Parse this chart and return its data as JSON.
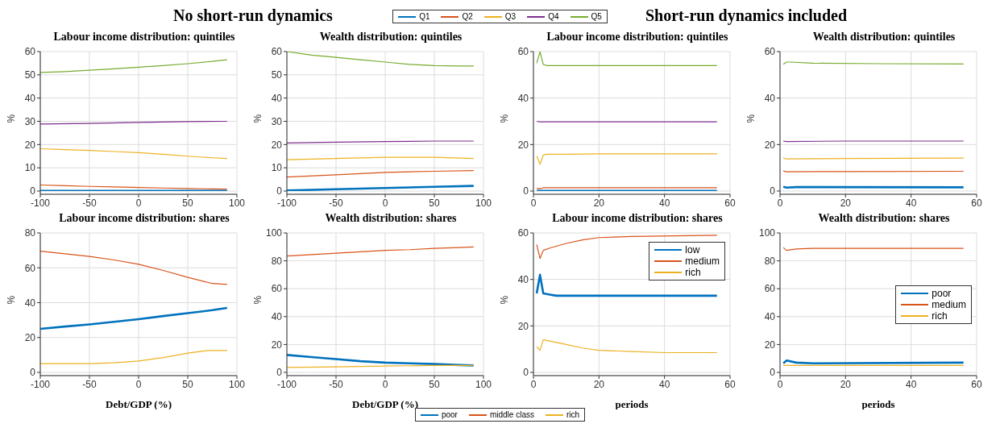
{
  "chart_data": [
    {
      "type": "line",
      "subtitle": "No short-run dynamics",
      "title": "Labour income distribution: quintiles",
      "ylabel": "%",
      "xlim": [
        -100,
        100
      ],
      "xticks": [
        -100,
        -50,
        0,
        50,
        100
      ],
      "ylim": [
        0,
        60
      ],
      "yticks": [
        0,
        10,
        20,
        30,
        40,
        50,
        60
      ],
      "grid": true,
      "legend": "top",
      "series": [
        {
          "name": "Q1",
          "color": "#0072bd",
          "x": [
            -100,
            -50,
            0,
            50,
            90
          ],
          "values": [
            0.1,
            0.1,
            0.1,
            0.1,
            0.1
          ]
        },
        {
          "name": "Q2",
          "color": "#d95319",
          "x": [
            -100,
            -75,
            -50,
            -25,
            0,
            25,
            50,
            75,
            90
          ],
          "values": [
            2.6,
            2.3,
            2,
            1.8,
            1.5,
            1.3,
            1.1,
            0.9,
            0.8
          ]
        },
        {
          "name": "Q3",
          "color": "#edb120",
          "x": [
            -100,
            -75,
            -50,
            -25,
            0,
            25,
            50,
            75,
            90
          ],
          "values": [
            18.2,
            17.8,
            17.5,
            17,
            16.5,
            15.8,
            15,
            14.3,
            14
          ]
        },
        {
          "name": "Q4",
          "color": "#7e2f8e",
          "x": [
            -100,
            -50,
            0,
            50,
            90
          ],
          "values": [
            28.8,
            29.1,
            29.5,
            29.9,
            30
          ]
        },
        {
          "name": "Q5",
          "color": "#77ac30",
          "x": [
            -100,
            -75,
            -50,
            -25,
            0,
            25,
            50,
            75,
            90
          ],
          "values": [
            51,
            51.4,
            52,
            52.6,
            53.3,
            54,
            54.8,
            55.8,
            56.5
          ]
        }
      ]
    },
    {
      "type": "line",
      "title": "Wealth distribution: quintiles",
      "ylabel": "%",
      "xlim": [
        -100,
        100
      ],
      "xticks": [
        -100,
        -50,
        0,
        50,
        100
      ],
      "ylim": [
        0,
        60
      ],
      "yticks": [
        0,
        10,
        20,
        30,
        40,
        50,
        60
      ],
      "grid": true,
      "series": [
        {
          "color": "#0072bd",
          "x": [
            -100,
            -50,
            0,
            50,
            90
          ],
          "values": [
            0.2,
            0.8,
            1.3,
            1.8,
            2.2
          ]
        },
        {
          "color": "#d95319",
          "x": [
            -100,
            -50,
            0,
            50,
            90
          ],
          "values": [
            6,
            7,
            8,
            8.5,
            8.8
          ]
        },
        {
          "color": "#edb120",
          "x": [
            -100,
            -50,
            0,
            50,
            90
          ],
          "values": [
            13.5,
            14,
            14.5,
            14.5,
            14
          ]
        },
        {
          "color": "#7e2f8e",
          "x": [
            -100,
            -50,
            0,
            50,
            90
          ],
          "values": [
            20.7,
            21,
            21.3,
            21.5,
            21.5
          ]
        },
        {
          "color": "#77ac30",
          "x": [
            -100,
            -75,
            -50,
            -25,
            0,
            25,
            50,
            75,
            90
          ],
          "values": [
            60,
            58.5,
            57.5,
            56.5,
            55.5,
            54.5,
            54,
            53.8,
            53.8
          ]
        }
      ]
    },
    {
      "type": "line",
      "subtitle": "Short-run dynamics included",
      "title": "Labour income distribution: quintiles",
      "ylabel": "%",
      "xlim": [
        0,
        60
      ],
      "xticks": [
        0,
        20,
        40,
        60
      ],
      "ylim": [
        0,
        60
      ],
      "yticks": [
        0,
        20,
        40,
        60
      ],
      "grid": true,
      "series": [
        {
          "color": "#0072bd",
          "x": [
            1,
            10,
            30,
            56
          ],
          "values": [
            0.1,
            0.1,
            0.1,
            0.1
          ]
        },
        {
          "color": "#d95319",
          "x": [
            1,
            2,
            3,
            10,
            56
          ],
          "values": [
            1.2,
            1,
            1.4,
            1.4,
            1.4
          ]
        },
        {
          "color": "#edb120",
          "x": [
            1,
            2,
            3,
            4,
            10,
            20,
            30,
            40,
            56
          ],
          "values": [
            15,
            11.5,
            15.5,
            15.8,
            15.8,
            16,
            16,
            16,
            16
          ]
        },
        {
          "color": "#7e2f8e",
          "x": [
            1,
            2,
            10,
            30,
            56
          ],
          "values": [
            30,
            29.8,
            29.8,
            29.8,
            29.8
          ]
        },
        {
          "color": "#77ac30",
          "x": [
            1,
            2,
            3,
            4,
            10,
            20,
            30,
            40,
            56
          ],
          "values": [
            55,
            60,
            54.5,
            54,
            54,
            54,
            54,
            54,
            54
          ]
        }
      ]
    },
    {
      "type": "line",
      "title": "Wealth distribution: quintiles",
      "ylabel": "%",
      "xlim": [
        0,
        60
      ],
      "xticks": [
        0,
        20,
        40,
        60
      ],
      "ylim": [
        0,
        60
      ],
      "yticks": [
        0,
        20,
        40,
        60
      ],
      "grid": true,
      "series": [
        {
          "color": "#0072bd",
          "x": [
            1,
            2,
            5,
            56
          ],
          "values": [
            1.8,
            1.5,
            1.7,
            1.6
          ]
        },
        {
          "color": "#d95319",
          "x": [
            1,
            2,
            20,
            56
          ],
          "values": [
            8.6,
            8.3,
            8.4,
            8.5
          ]
        },
        {
          "color": "#edb120",
          "x": [
            1,
            2,
            20,
            56
          ],
          "values": [
            14.2,
            13.8,
            14,
            14.2
          ]
        },
        {
          "color": "#7e2f8e",
          "x": [
            1,
            2,
            20,
            56
          ],
          "values": [
            21.5,
            21.3,
            21.5,
            21.5
          ]
        },
        {
          "color": "#77ac30",
          "x": [
            1,
            2,
            3,
            10,
            30,
            56
          ],
          "values": [
            54.5,
            55.5,
            55.5,
            55,
            54.8,
            54.7
          ]
        }
      ]
    },
    {
      "type": "line",
      "title": "Labour income distribution: shares",
      "xlabel": "Debt/GDP (%)",
      "ylabel": "%",
      "xlim": [
        -100,
        100
      ],
      "xticks": [
        -100,
        -50,
        0,
        50,
        100
      ],
      "ylim": [
        0,
        80
      ],
      "yticks": [
        0,
        20,
        40,
        60,
        80
      ],
      "grid": true,
      "legend": "bottom",
      "series": [
        {
          "name": "poor",
          "color": "#0072bd",
          "x": [
            -100,
            -75,
            -50,
            -25,
            0,
            25,
            50,
            75,
            90
          ],
          "values": [
            25,
            26.3,
            27.5,
            29,
            30.5,
            32.3,
            34,
            35.7,
            37
          ]
        },
        {
          "name": "middle class",
          "color": "#d95319",
          "x": [
            -100,
            -75,
            -50,
            -25,
            0,
            25,
            50,
            75,
            90
          ],
          "values": [
            69.5,
            68,
            66.5,
            64.5,
            62,
            58.5,
            54.5,
            51,
            50.5
          ]
        },
        {
          "name": "rich",
          "color": "#edb120",
          "x": [
            -100,
            -75,
            -50,
            -25,
            0,
            25,
            50,
            70,
            90
          ],
          "values": [
            5,
            5,
            5,
            5.5,
            6.5,
            8.5,
            11,
            12.5,
            12.5
          ]
        }
      ]
    },
    {
      "type": "line",
      "title": "Wealth distribution: shares",
      "xlabel": "Debt/GDP (%)",
      "ylabel": "%",
      "xlim": [
        -100,
        100
      ],
      "xticks": [
        -100,
        -50,
        0,
        50,
        100
      ],
      "ylim": [
        0,
        100
      ],
      "yticks": [
        0,
        20,
        40,
        60,
        80,
        100
      ],
      "grid": true,
      "series": [
        {
          "color": "#0072bd",
          "x": [
            -100,
            -75,
            -50,
            -25,
            0,
            25,
            50,
            75,
            90
          ],
          "values": [
            12.5,
            11,
            9.5,
            8,
            7,
            6.5,
            6,
            5.3,
            5
          ]
        },
        {
          "color": "#d95319",
          "x": [
            -100,
            -75,
            -50,
            -25,
            0,
            25,
            50,
            75,
            90
          ],
          "values": [
            83.5,
            84.5,
            85.5,
            86.5,
            87.5,
            88,
            89,
            89.5,
            90
          ]
        },
        {
          "color": "#edb120",
          "x": [
            -100,
            -50,
            0,
            50,
            90
          ],
          "values": [
            3.5,
            4,
            4.5,
            5,
            5
          ]
        }
      ]
    },
    {
      "type": "line",
      "title": "Labour income distribution: shares",
      "xlabel": "periods",
      "ylabel": "%",
      "xlim": [
        0,
        60
      ],
      "xticks": [
        0,
        20,
        40,
        60
      ],
      "ylim": [
        0,
        60
      ],
      "yticks": [
        0,
        20,
        40,
        60
      ],
      "grid": true,
      "legend": "top right",
      "series": [
        {
          "name": "low",
          "color": "#0072bd",
          "x": [
            1,
            2,
            3,
            5,
            7,
            10,
            20,
            56
          ],
          "values": [
            34,
            42,
            34,
            33.5,
            33,
            33,
            33,
            33
          ]
        },
        {
          "name": "medium",
          "color": "#d95319",
          "x": [
            1,
            2,
            3,
            5,
            10,
            15,
            20,
            30,
            56
          ],
          "values": [
            55,
            49,
            52.5,
            53.5,
            55.5,
            57,
            58,
            58.5,
            59
          ]
        },
        {
          "name": "rich",
          "color": "#edb120",
          "x": [
            1,
            2,
            3,
            5,
            10,
            15,
            20,
            30,
            40,
            56
          ],
          "values": [
            11,
            9.5,
            14,
            13.5,
            12,
            10.5,
            9.5,
            9,
            8.5,
            8.5
          ]
        }
      ]
    },
    {
      "type": "line",
      "title": "Wealth distribution: shares",
      "xlabel": "periods",
      "xlim": [
        0,
        60
      ],
      "xticks": [
        0,
        20,
        40,
        60
      ],
      "ylim": [
        0,
        100
      ],
      "yticks": [
        0,
        20,
        40,
        60,
        80,
        100
      ],
      "grid": true,
      "legend": "right",
      "series": [
        {
          "name": "poor",
          "color": "#0072bd",
          "x": [
            1,
            2,
            5,
            10,
            56
          ],
          "values": [
            6.5,
            8.5,
            7,
            6.5,
            7
          ]
        },
        {
          "name": "medium",
          "color": "#d95319",
          "x": [
            1,
            2,
            5,
            10,
            56
          ],
          "values": [
            89.5,
            87.5,
            88.5,
            89,
            89
          ]
        },
        {
          "name": "rich",
          "color": "#edb120",
          "x": [
            1,
            56
          ],
          "values": [
            5,
            5
          ]
        }
      ]
    }
  ]
}
